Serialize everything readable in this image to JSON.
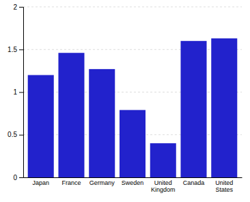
{
  "chart_data": {
    "type": "bar",
    "categories": [
      "Japan",
      "France",
      "Germany",
      "Sweden",
      "United\nKingdom",
      "Canada",
      "United\nStates"
    ],
    "values": [
      1.2,
      1.46,
      1.27,
      0.79,
      0.4,
      1.6,
      1.63
    ],
    "color": "#2222cc",
    "ylim": [
      0,
      2
    ],
    "yticks": [
      0,
      0.5,
      1,
      1.5,
      2
    ],
    "grid": true
  }
}
